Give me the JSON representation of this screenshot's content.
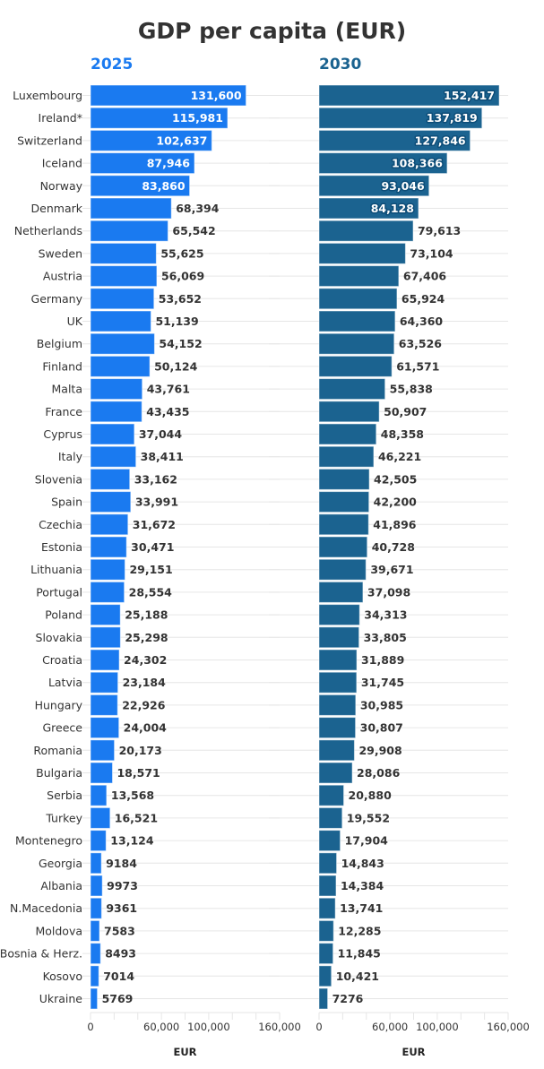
{
  "chart_data": [
    {
      "type": "bar",
      "orientation": "horizontal",
      "title": "GDP per capita (EUR)",
      "subtitle": "2025",
      "xlabel": "EUR",
      "ylabel": "",
      "xlim": [
        0,
        160000
      ],
      "xticks": [
        0,
        20000,
        40000,
        60000,
        80000,
        100000,
        120000,
        140000,
        160000
      ],
      "xtick_labels": [
        "0",
        "",
        "",
        "60,000",
        "",
        "100,000",
        "",
        "",
        "160,000"
      ],
      "grid": true,
      "color": "#1a7af0",
      "categories": [
        "Luxembourg",
        "Ireland*",
        "Switzerland",
        "Iceland",
        "Norway",
        "Denmark",
        "Netherlands",
        "Sweden",
        "Austria",
        "Germany",
        "UK",
        "Belgium",
        "Finland",
        "Malta",
        "France",
        "Cyprus",
        "Italy",
        "Slovenia",
        "Spain",
        "Czechia",
        "Estonia",
        "Lithuania",
        "Portugal",
        "Poland",
        "Slovakia",
        "Croatia",
        "Latvia",
        "Hungary",
        "Greece",
        "Romania",
        "Bulgaria",
        "Serbia",
        "Turkey",
        "Montenegro",
        "Georgia",
        "Albania",
        "N.Macedonia",
        "Moldova",
        "Bosnia & Herz.",
        "Kosovo",
        "Ukraine"
      ],
      "values": [
        131600,
        115981,
        102637,
        87946,
        83860,
        68394,
        65542,
        55625,
        56069,
        53652,
        51139,
        54152,
        50124,
        43761,
        43435,
        37044,
        38411,
        33162,
        33991,
        31672,
        30471,
        29151,
        28554,
        25188,
        25298,
        24302,
        23184,
        22926,
        24004,
        20173,
        18571,
        13568,
        16521,
        13124,
        9184,
        9973,
        9361,
        7583,
        8493,
        7014,
        5769
      ],
      "value_labels": [
        "131,600",
        "115,981",
        "102,637",
        "87,946",
        "83,860",
        "68,394",
        "65,542",
        "55,625",
        "56,069",
        "53,652",
        "51,139",
        "54,152",
        "50,124",
        "43,761",
        "43,435",
        "37,044",
        "38,411",
        "33,162",
        "33,991",
        "31,672",
        "30,471",
        "29,151",
        "28,554",
        "25,188",
        "25,298",
        "24,302",
        "23,184",
        "22,926",
        "24,004",
        "20,173",
        "18,571",
        "13,568",
        "16,521",
        "13,124",
        "9184",
        "9973",
        "9361",
        "7583",
        "8493",
        "7014",
        "5769"
      ]
    },
    {
      "type": "bar",
      "orientation": "horizontal",
      "title": "GDP per capita (EUR)",
      "subtitle": "2030",
      "xlabel": "EUR",
      "ylabel": "",
      "xlim": [
        0,
        160000
      ],
      "xticks": [
        0,
        20000,
        40000,
        60000,
        80000,
        100000,
        120000,
        140000,
        160000
      ],
      "xtick_labels": [
        "0",
        "",
        "",
        "60,000",
        "",
        "100,000",
        "",
        "",
        "160,000"
      ],
      "grid": true,
      "color": "#1b6390",
      "categories": [
        "Luxembourg",
        "Ireland*",
        "Switzerland",
        "Iceland",
        "Norway",
        "Denmark",
        "Netherlands",
        "Sweden",
        "Austria",
        "Germany",
        "UK",
        "Belgium",
        "Finland",
        "Malta",
        "France",
        "Cyprus",
        "Italy",
        "Slovenia",
        "Spain",
        "Czechia",
        "Estonia",
        "Lithuania",
        "Portugal",
        "Poland",
        "Slovakia",
        "Croatia",
        "Latvia",
        "Hungary",
        "Greece",
        "Romania",
        "Bulgaria",
        "Serbia",
        "Turkey",
        "Montenegro",
        "Georgia",
        "Albania",
        "N.Macedonia",
        "Moldova",
        "Bosnia & Herz.",
        "Kosovo",
        "Ukraine"
      ],
      "values": [
        152417,
        137819,
        127846,
        108366,
        93046,
        84128,
        79613,
        73104,
        67406,
        65924,
        64360,
        63526,
        61571,
        55838,
        50907,
        48358,
        46221,
        42505,
        42200,
        41896,
        40728,
        39671,
        37098,
        34313,
        33805,
        31889,
        31745,
        30985,
        30807,
        29908,
        28086,
        20880,
        19552,
        17904,
        14843,
        14384,
        13741,
        12285,
        11845,
        10421,
        7276
      ],
      "value_labels": [
        "152,417",
        "137,819",
        "127,846",
        "108,366",
        "93,046",
        "84,128",
        "79,613",
        "73,104",
        "67,406",
        "65,924",
        "64,360",
        "63,526",
        "61,571",
        "55,838",
        "50,907",
        "48,358",
        "46,221",
        "42,505",
        "42,200",
        "41,896",
        "40,728",
        "39,671",
        "37,098",
        "34,313",
        "33,805",
        "31,889",
        "31,745",
        "30,985",
        "30,807",
        "29,908",
        "28,086",
        "20,880",
        "19,552",
        "17,904",
        "14,843",
        "14,384",
        "13,741",
        "12,285",
        "11,845",
        "10,421",
        "7276"
      ]
    }
  ],
  "header": {
    "title": "GDP per capita (EUR)",
    "left_subtitle": "2025",
    "right_subtitle": "2030"
  }
}
